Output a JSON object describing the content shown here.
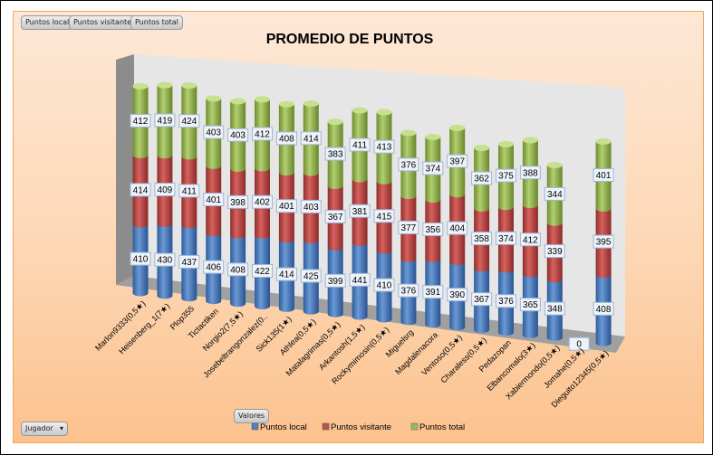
{
  "filters": [
    "Puntos local",
    "Puntos visitante",
    "Puntos total"
  ],
  "row_field": "Jugador",
  "values_field": "Valores",
  "chart_data": {
    "type": "bar",
    "subtype": "3d-stacked-cylinder",
    "title": "PROMEDIO DE PUNTOS",
    "categories": [
      "Marlon9333(0,5★)",
      "Heisenberg_1(7★)",
      "Plop355",
      "Tictactiken",
      "Norgio2(7,5★)",
      "Josebeltrangonzalez(0..",
      "Sick135(1★)",
      "Athlea(0,5★)",
      "Matalagrimas(0,5★)",
      "Arkantosh(1,5★)",
      "Rockymimosin(0,5★)",
      "Miguelsrg",
      "Magdalenacora",
      "Ventoso(0,5★)",
      "Charaless(0,5★)",
      "Pedazopan",
      "Elbancomalo(3★)",
      "Xabiermondo(0,5★)",
      "Jomahe(0,5★)",
      "Dieguito12345(0,5★)"
    ],
    "series": [
      {
        "name": "Puntos local",
        "color": "#4f81bd",
        "values": [
          410,
          430,
          437,
          406,
          408,
          422,
          414,
          425,
          399,
          441,
          410,
          376,
          391,
          390,
          367,
          376,
          365,
          348,
          0,
          408
        ]
      },
      {
        "name": "Puntos visitante",
        "color": "#c0504d",
        "values": [
          414,
          409,
          411,
          401,
          398,
          402,
          401,
          403,
          367,
          381,
          415,
          377,
          356,
          404,
          358,
          374,
          412,
          339,
          0,
          395
        ]
      },
      {
        "name": "Puntos total",
        "color": "#9bbb59",
        "values": [
          412,
          419,
          424,
          403,
          403,
          412,
          408,
          414,
          383,
          411,
          413,
          376,
          374,
          397,
          362,
          375,
          388,
          344,
          0,
          401
        ]
      }
    ],
    "legend": "bottom",
    "grid": false
  }
}
